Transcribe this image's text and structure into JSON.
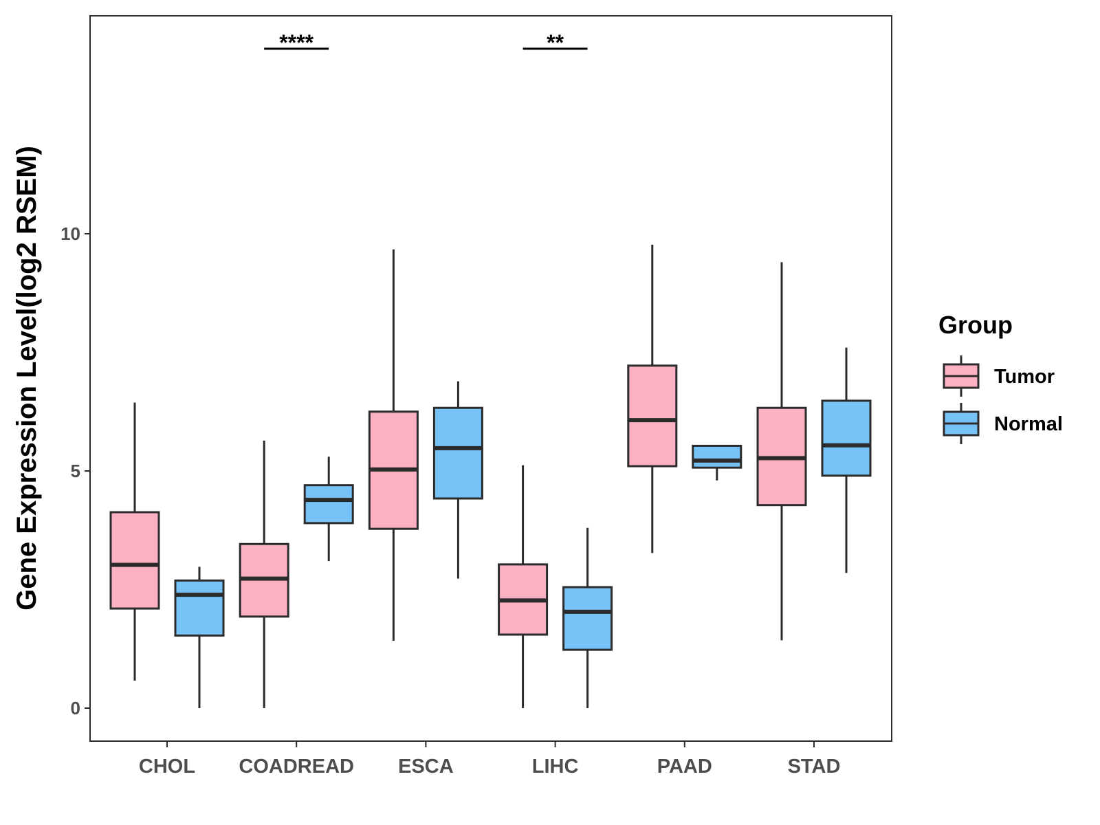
{
  "chart_data": {
    "type": "boxplot",
    "title": "",
    "xlabel": "",
    "ylabel": "Gene Expression Level(log2 RSEM)",
    "ylim": [
      -0.68,
      14.6
    ],
    "y_ticks": [
      0,
      5,
      10
    ],
    "y_tick_labels": [
      "0",
      "5",
      "10"
    ],
    "grid": false,
    "categories": [
      "CHOL",
      "COADREAD",
      "ESCA",
      "LIHC",
      "PAAD",
      "STAD"
    ],
    "series": [
      {
        "name": "Tumor",
        "color": "#fbb1c2",
        "boxes": [
          {
            "min": 0.58,
            "q1": 2.1,
            "median": 3.02,
            "q3": 4.13,
            "max": 6.44
          },
          {
            "min": 0.0,
            "q1": 1.93,
            "median": 2.73,
            "q3": 3.46,
            "max": 5.64
          },
          {
            "min": 1.42,
            "q1": 3.78,
            "median": 5.03,
            "q3": 6.25,
            "max": 9.67
          },
          {
            "min": 0.0,
            "q1": 1.55,
            "median": 2.27,
            "q3": 3.03,
            "max": 5.12
          },
          {
            "min": 3.27,
            "q1": 5.1,
            "median": 6.07,
            "q3": 7.22,
            "max": 9.77
          },
          {
            "min": 1.43,
            "q1": 4.28,
            "median": 5.27,
            "q3": 6.33,
            "max": 9.4
          }
        ]
      },
      {
        "name": "Normal",
        "color": "#77c3f8",
        "boxes": [
          {
            "min": 0.0,
            "q1": 1.53,
            "median": 2.39,
            "q3": 2.69,
            "max": 2.98
          },
          {
            "min": 3.1,
            "q1": 3.9,
            "median": 4.39,
            "q3": 4.7,
            "max": 5.3
          },
          {
            "min": 2.73,
            "q1": 4.42,
            "median": 5.48,
            "q3": 6.33,
            "max": 6.89
          },
          {
            "min": 0.0,
            "q1": 1.23,
            "median": 2.03,
            "q3": 2.55,
            "max": 3.8
          },
          {
            "min": 4.8,
            "q1": 5.07,
            "median": 5.22,
            "q3": 5.53,
            "max": 5.53
          },
          {
            "min": 2.85,
            "q1": 4.9,
            "median": 5.54,
            "q3": 6.48,
            "max": 7.6
          }
        ]
      }
    ],
    "significance": [
      {
        "category": "COADREAD",
        "label": "****",
        "y": 13.9
      },
      {
        "category": "LIHC",
        "label": "**",
        "y": 13.9
      }
    ],
    "legend": {
      "title": "Group",
      "position": "right",
      "entries": [
        "Tumor",
        "Normal"
      ]
    }
  }
}
